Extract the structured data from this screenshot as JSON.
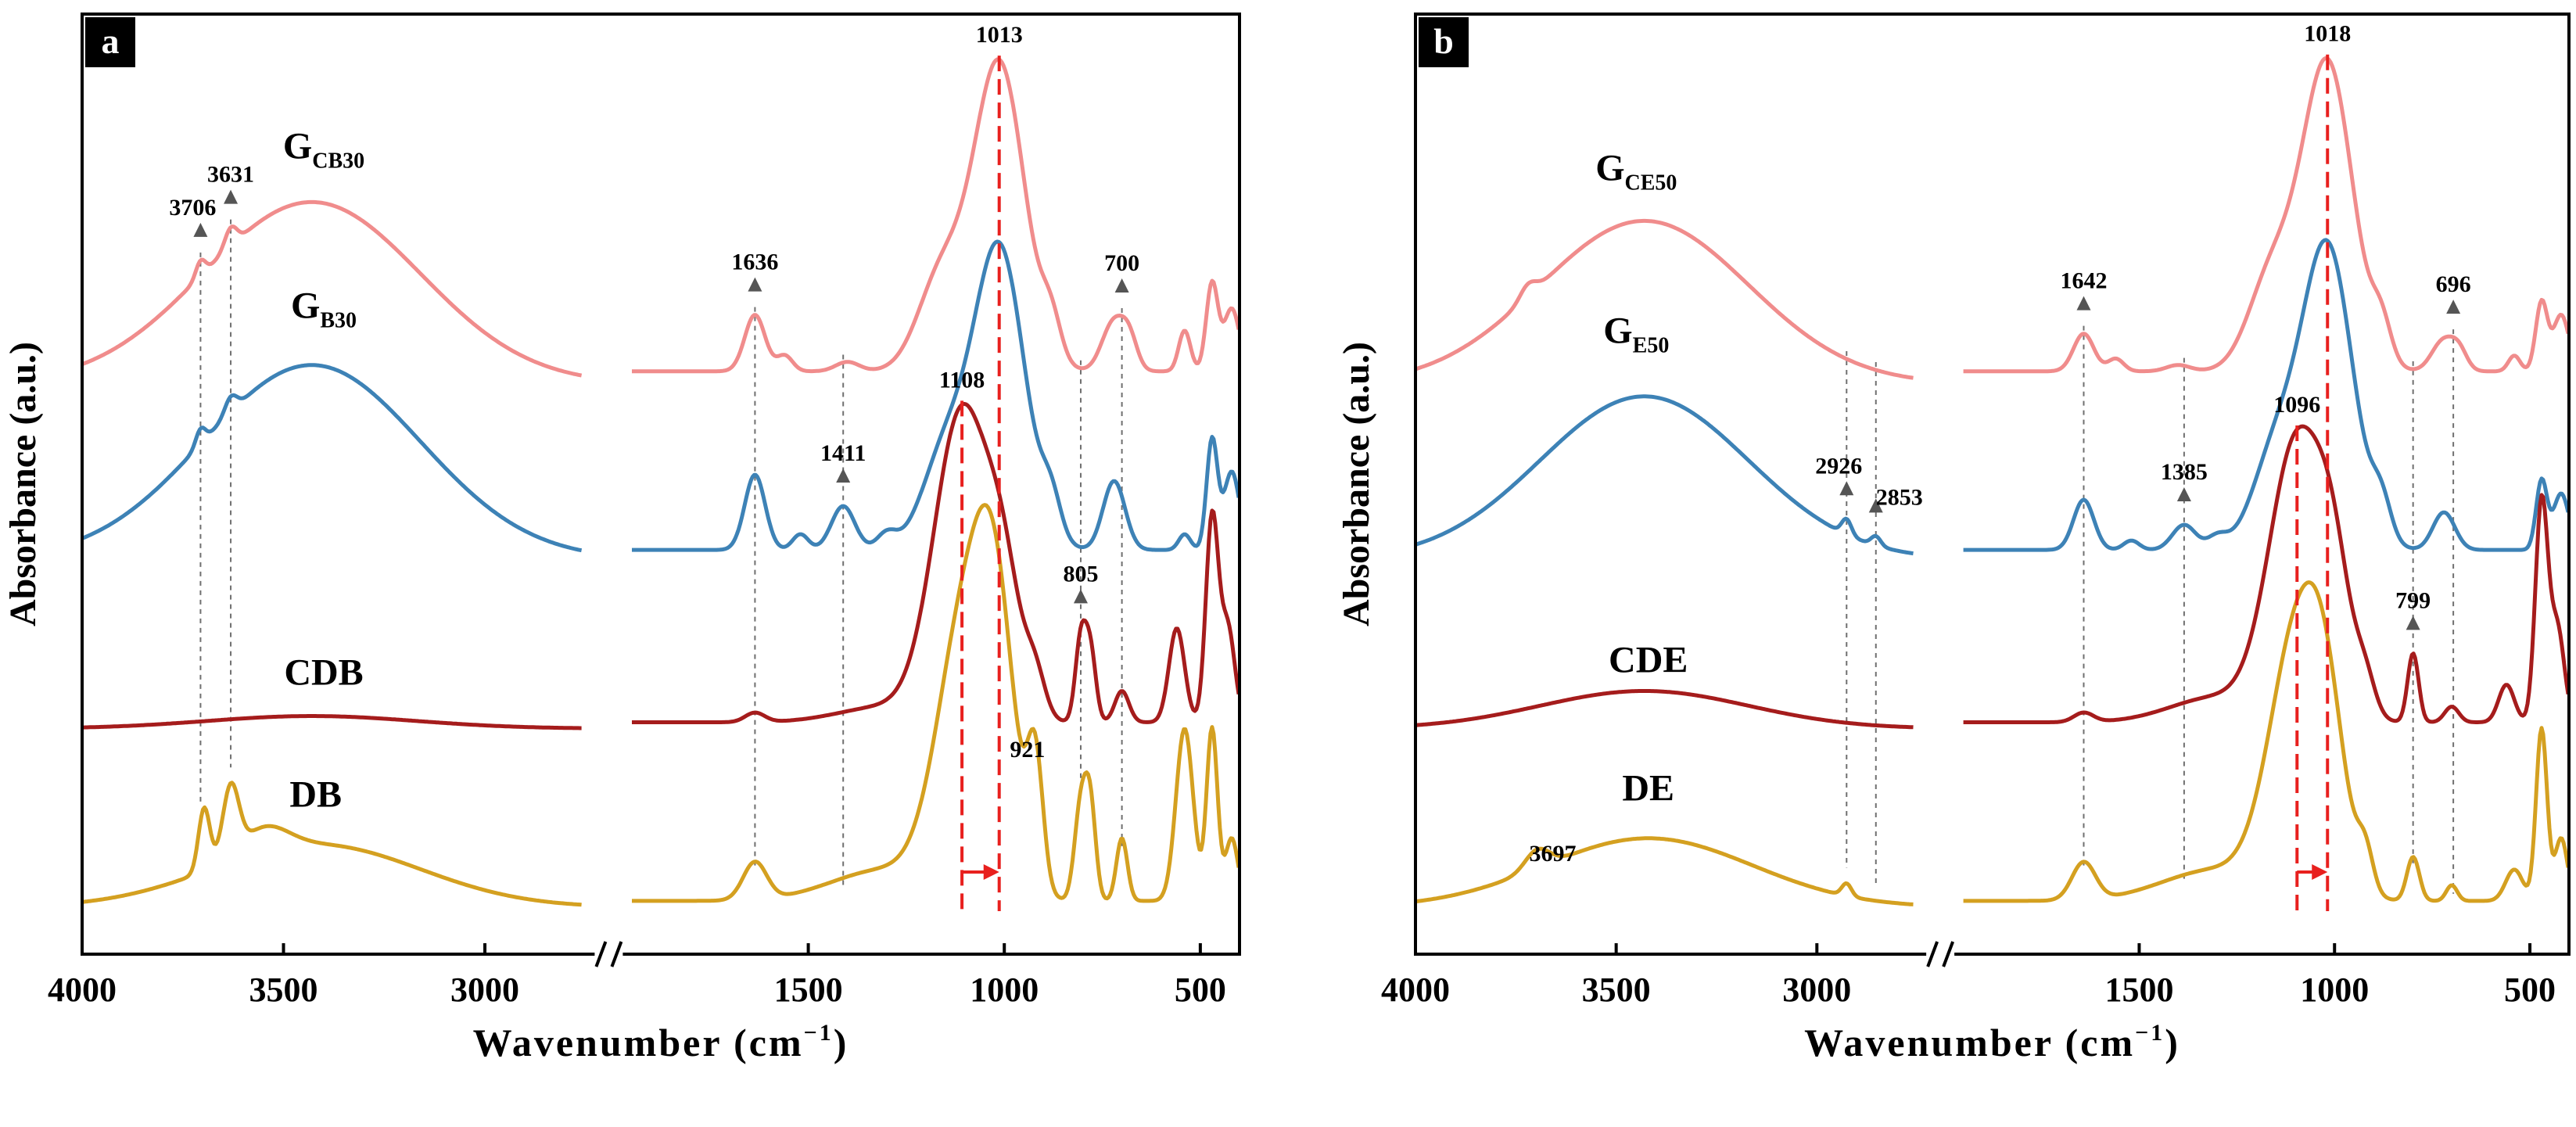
{
  "figure": {
    "common": {
      "xlabel": "Wavenumber (cm",
      "xlabel_sup": "−1",
      "xlabel_close": ")",
      "ylabel": "Absorbance (a.u.)",
      "x_range_left": [
        4000,
        2750
      ],
      "x_range_right": [
        1950,
        400
      ],
      "x_ticks": [
        4000,
        3500,
        3000,
        1500,
        1000,
        500
      ],
      "x_tick_labels": [
        "4000",
        "3500",
        "3000",
        "1500",
        "1000",
        "500"
      ],
      "axis_break": "//"
    },
    "colors": {
      "pink": "#f08c8c",
      "blue": "#3d82b6",
      "darkred": "#a51c1c",
      "gold": "#d4a020",
      "marker_red": "#e8201e",
      "guide_gray": "#6f6f6f",
      "arrow_gray": "#555555",
      "axis": "#000000"
    }
  },
  "panel_a": {
    "tag": "a",
    "series": [
      {
        "name": "GCB30",
        "label_main": "G",
        "label_sub": "CB30",
        "color": "pink",
        "offset": 1.1,
        "baseline_l": 0.02,
        "baseline_r": 0.06,
        "peaks": [
          [
            3430,
            0.58,
            270
          ],
          [
            3706,
            0.05,
            12
          ],
          [
            3631,
            0.06,
            15
          ],
          [
            1636,
            0.18,
            26
          ],
          [
            1560,
            0.05,
            20
          ],
          [
            1400,
            0.03,
            30
          ],
          [
            1160,
            0.3,
            60
          ],
          [
            1013,
            0.98,
            65
          ],
          [
            880,
            0.12,
            25
          ],
          [
            720,
            0.16,
            30
          ],
          [
            680,
            0.08,
            20
          ],
          [
            540,
            0.13,
            15
          ],
          [
            470,
            0.28,
            15
          ],
          [
            420,
            0.2,
            20
          ]
        ]
      },
      {
        "name": "GB30",
        "label_main": "G",
        "label_sub": "B30",
        "color": "blue",
        "offset": 0.55,
        "baseline_l": 0.01,
        "baseline_r": 0.04,
        "peaks": [
          [
            3430,
            0.62,
            270
          ],
          [
            3706,
            0.05,
            12
          ],
          [
            3631,
            0.05,
            15
          ],
          [
            1636,
            0.24,
            26
          ],
          [
            1520,
            0.05,
            20
          ],
          [
            1411,
            0.14,
            30
          ],
          [
            1300,
            0.05,
            25
          ],
          [
            1150,
            0.3,
            60
          ],
          [
            1013,
            0.96,
            65
          ],
          [
            880,
            0.12,
            25
          ],
          [
            720,
            0.22,
            28
          ],
          [
            540,
            0.05,
            15
          ],
          [
            470,
            0.35,
            14
          ],
          [
            420,
            0.25,
            20
          ]
        ]
      },
      {
        "name": "CDB",
        "label_main": "CDB",
        "label_sub": "",
        "color": "darkred",
        "offset": 0.0,
        "baseline_l": 0.02,
        "baseline_r": 0.04,
        "peaks": [
          [
            3430,
            0.04,
            260
          ],
          [
            1636,
            0.03,
            25
          ],
          [
            1300,
            0.05,
            120
          ],
          [
            1108,
            0.98,
            70
          ],
          [
            1000,
            0.35,
            45
          ],
          [
            920,
            0.12,
            25
          ],
          [
            805,
            0.26,
            14
          ],
          [
            780,
            0.22,
            14
          ],
          [
            700,
            0.1,
            18
          ],
          [
            560,
            0.3,
            20
          ],
          [
            470,
            0.65,
            16
          ],
          [
            430,
            0.3,
            18
          ]
        ]
      },
      {
        "name": "DB",
        "label_main": "DB",
        "label_sub": "",
        "color": "gold",
        "offset": -0.55,
        "baseline_l": 0.0,
        "baseline_r": 0.02,
        "peaks": [
          [
            3420,
            0.2,
            260
          ],
          [
            3697,
            0.2,
            14
          ],
          [
            3631,
            0.22,
            20
          ],
          [
            3550,
            0.08,
            60
          ],
          [
            1636,
            0.12,
            30
          ],
          [
            1300,
            0.1,
            140
          ],
          [
            1100,
            0.85,
            70
          ],
          [
            1020,
            0.7,
            50
          ],
          [
            921,
            0.4,
            20
          ],
          [
            805,
            0.3,
            16
          ],
          [
            780,
            0.28,
            14
          ],
          [
            700,
            0.2,
            14
          ],
          [
            540,
            0.55,
            22
          ],
          [
            470,
            0.55,
            14
          ],
          [
            420,
            0.2,
            16
          ]
        ]
      }
    ],
    "markers": [
      {
        "x": 1108,
        "to": 1013
      },
      {
        "x": 1013,
        "to": 1013
      }
    ],
    "annotations": [
      {
        "text": "3706",
        "x": 3706,
        "series": 0,
        "arrow": true,
        "yoff": 0.08
      },
      {
        "text": "3631",
        "x": 3631,
        "series": 0,
        "arrow": true,
        "yoff": 0.18
      },
      {
        "text": "1636",
        "x": 1636,
        "series": 0,
        "arrow": true,
        "yoff": 0.12
      },
      {
        "text": "700",
        "x": 700,
        "series": 0,
        "arrow": true,
        "yoff": 0.12
      },
      {
        "text": "1013",
        "x": 1013,
        "series": 0,
        "arrow": false,
        "yoff": 0.08
      },
      {
        "text": "1411",
        "x": 1411,
        "series": 1,
        "arrow": true,
        "yoff": 0.1
      },
      {
        "text": "1108",
        "x": 1108,
        "series": 2,
        "arrow": false,
        "yoff": 0.06
      },
      {
        "text": "805",
        "x": 805,
        "series": 2,
        "arrow": true,
        "yoff": 0.1
      },
      {
        "text": "921",
        "x": 921,
        "series": 3,
        "arrow": false,
        "yoff": 0.14
      }
    ],
    "guides": [
      3706,
      3631,
      1636,
      1411,
      805,
      700
    ],
    "label_positions": [
      [
        3400,
        0.74
      ],
      [
        3400,
        0.78
      ],
      [
        3400,
        0.16
      ],
      [
        3420,
        0.32
      ]
    ]
  },
  "panel_b": {
    "tag": "b",
    "series": [
      {
        "name": "GCE50",
        "label_main": "G",
        "label_sub": "CE50",
        "color": "pink",
        "offset": 1.1,
        "baseline_l": 0.02,
        "baseline_r": 0.06,
        "peaks": [
          [
            3430,
            0.52,
            260
          ],
          [
            3720,
            0.04,
            20
          ],
          [
            1642,
            0.12,
            26
          ],
          [
            1560,
            0.04,
            20
          ],
          [
            1400,
            0.02,
            30
          ],
          [
            1160,
            0.3,
            60
          ],
          [
            1018,
            0.98,
            65
          ],
          [
            880,
            0.12,
            25
          ],
          [
            720,
            0.1,
            30
          ],
          [
            680,
            0.05,
            20
          ],
          [
            540,
            0.05,
            15
          ],
          [
            470,
            0.22,
            15
          ],
          [
            420,
            0.18,
            20
          ]
        ]
      },
      {
        "name": "GE50",
        "label_main": "G",
        "label_sub": "E50",
        "color": "blue",
        "offset": 0.55,
        "baseline_l": 0.01,
        "baseline_r": 0.04,
        "peaks": [
          [
            3430,
            0.52,
            260
          ],
          [
            2926,
            0.05,
            12
          ],
          [
            2853,
            0.03,
            12
          ],
          [
            1642,
            0.16,
            26
          ],
          [
            1520,
            0.03,
            20
          ],
          [
            1385,
            0.08,
            30
          ],
          [
            1300,
            0.04,
            25
          ],
          [
            1150,
            0.3,
            60
          ],
          [
            1018,
            0.96,
            65
          ],
          [
            880,
            0.12,
            25
          ],
          [
            720,
            0.12,
            28
          ],
          [
            470,
            0.22,
            14
          ],
          [
            420,
            0.18,
            20
          ]
        ]
      },
      {
        "name": "CDE",
        "label_main": "CDE",
        "label_sub": "",
        "color": "darkred",
        "offset": 0.0,
        "baseline_l": 0.02,
        "baseline_r": 0.04,
        "peaks": [
          [
            3430,
            0.12,
            260
          ],
          [
            1642,
            0.03,
            25
          ],
          [
            1300,
            0.08,
            120
          ],
          [
            1096,
            0.88,
            70
          ],
          [
            1000,
            0.35,
            45
          ],
          [
            920,
            0.1,
            25
          ],
          [
            799,
            0.22,
            14
          ],
          [
            700,
            0.05,
            18
          ],
          [
            560,
            0.12,
            20
          ],
          [
            470,
            0.7,
            16
          ],
          [
            430,
            0.3,
            18
          ]
        ]
      },
      {
        "name": "DE",
        "label_main": "DE",
        "label_sub": "",
        "color": "gold",
        "offset": -0.55,
        "baseline_l": 0.0,
        "baseline_r": 0.02,
        "peaks": [
          [
            3420,
            0.22,
            260
          ],
          [
            3697,
            0.06,
            30
          ],
          [
            2926,
            0.04,
            12
          ],
          [
            1642,
            0.12,
            30
          ],
          [
            1300,
            0.1,
            140
          ],
          [
            1096,
            0.8,
            70
          ],
          [
            1020,
            0.4,
            50
          ],
          [
            921,
            0.12,
            20
          ],
          [
            799,
            0.14,
            16
          ],
          [
            700,
            0.05,
            14
          ],
          [
            540,
            0.1,
            22
          ],
          [
            470,
            0.55,
            14
          ],
          [
            420,
            0.2,
            16
          ]
        ]
      }
    ],
    "markers": [
      {
        "x": 1096,
        "to": 1018
      },
      {
        "x": 1018,
        "to": 1018
      }
    ],
    "annotations": [
      {
        "text": "1642",
        "x": 1642,
        "series": 0,
        "arrow": true,
        "yoff": 0.12
      },
      {
        "text": "696",
        "x": 696,
        "series": 0,
        "arrow": true,
        "yoff": 0.14
      },
      {
        "text": "1018",
        "x": 1018,
        "series": 0,
        "arrow": false,
        "yoff": 0.08
      },
      {
        "text": "2926",
        "x": 2926,
        "series": 1,
        "arrow": true,
        "yoff": 0.1
      },
      {
        "text": "2853",
        "x": 2853,
        "series": 1,
        "arrow": true,
        "yoff": 0.1
      },
      {
        "text": "1385",
        "x": 1385,
        "series": 1,
        "arrow": true,
        "yoff": 0.1
      },
      {
        "text": "1096",
        "x": 1096,
        "series": 2,
        "arrow": false,
        "yoff": 0.06
      },
      {
        "text": "799",
        "x": 799,
        "series": 2,
        "arrow": true,
        "yoff": 0.1
      },
      {
        "text": "3697",
        "x": 3697,
        "series": 3,
        "arrow": false,
        "yoff": 0.1
      }
    ],
    "guides": [
      2926,
      2853,
      1642,
      1385,
      799,
      696
    ],
    "label_positions": [
      [
        3450,
        0.67
      ],
      [
        3450,
        0.7
      ],
      [
        3420,
        0.2
      ],
      [
        3420,
        0.34
      ]
    ]
  },
  "chart_data": [
    {
      "type": "line",
      "title": "a",
      "xlabel": "Wavenumber (cm−1)",
      "ylabel": "Absorbance (a.u.)",
      "xlim": [
        4000,
        400
      ],
      "x_break": [
        2750,
        1950
      ],
      "series": [
        {
          "name": "GCB30",
          "peaks_cm-1": [
            3706,
            3631,
            1636,
            1013,
            700
          ]
        },
        {
          "name": "GB30",
          "peaks_cm-1": [
            1411,
            1013
          ]
        },
        {
          "name": "CDB",
          "peaks_cm-1": [
            1108,
            805
          ]
        },
        {
          "name": "DB",
          "peaks_cm-1": [
            921
          ]
        }
      ],
      "annotations": [
        "3706",
        "3631",
        "1636",
        "1013",
        "700",
        "1411",
        "1108",
        "805",
        "921"
      ]
    },
    {
      "type": "line",
      "title": "b",
      "xlabel": "Wavenumber (cm−1)",
      "ylabel": "Absorbance (a.u.)",
      "xlim": [
        4000,
        400
      ],
      "x_break": [
        2750,
        1950
      ],
      "series": [
        {
          "name": "GCE50",
          "peaks_cm-1": [
            1642,
            1018,
            696
          ]
        },
        {
          "name": "GE50",
          "peaks_cm-1": [
            2926,
            2853,
            1385
          ]
        },
        {
          "name": "CDE",
          "peaks_cm-1": [
            1096,
            799
          ]
        },
        {
          "name": "DE",
          "peaks_cm-1": [
            3697
          ]
        }
      ],
      "annotations": [
        "1642",
        "1018",
        "696",
        "2926",
        "2853",
        "1385",
        "1096",
        "799",
        "3697"
      ]
    }
  ]
}
